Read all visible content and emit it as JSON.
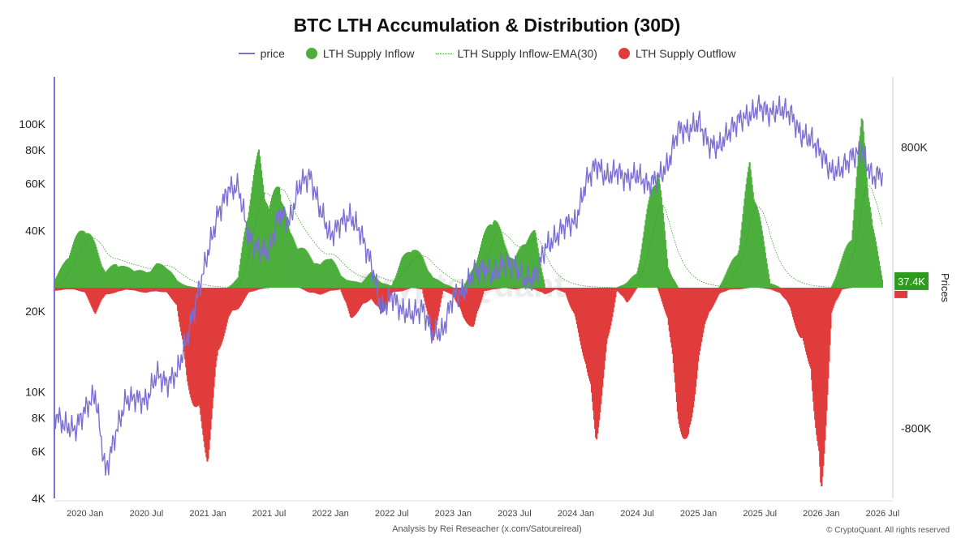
{
  "colors": {
    "price": "#7b6fd6",
    "inflow": "#4caf3c",
    "inflow_ema": "#3a9a2e",
    "outflow": "#e03c3c",
    "axis": "#7b6fd6",
    "badge": "#2e9a1f"
  },
  "chart_data": {
    "type": "bar",
    "title": "BTC LTH Accumulation & Distribution (30D)",
    "legend": [
      {
        "name": "price",
        "kind": "line",
        "color_key": "price"
      },
      {
        "name": "LTH Supply Inflow",
        "kind": "dot",
        "color_key": "inflow"
      },
      {
        "name": "LTH Supply Inflow-EMA(30)",
        "kind": "dash",
        "color_key": "inflow_ema"
      },
      {
        "name": "LTH Supply Outflow",
        "kind": "dot",
        "color_key": "outflow"
      }
    ],
    "legend_position": "top-center",
    "x_ticks": [
      "2020 Jan",
      "2020 Jul",
      "2021 Jan",
      "2021 Jul",
      "2022 Jan",
      "2022 Jul",
      "2023 Jan",
      "2023 Jul",
      "2024 Jan",
      "2024 Jul",
      "2025 Jan",
      "2025 Jul",
      "2026 Jan",
      "2026 Jul"
    ],
    "x_range": [
      "2019-10",
      "2026-08"
    ],
    "left_axis": {
      "scale": "log",
      "range": [
        4000,
        150000
      ],
      "ticks": [
        {
          "v": 4000,
          "label": "4K"
        },
        {
          "v": 6000,
          "label": "6K"
        },
        {
          "v": 8000,
          "label": "8K"
        },
        {
          "v": 10000,
          "label": "10K"
        },
        {
          "v": 20000,
          "label": "20K"
        },
        {
          "v": 40000,
          "label": "40K"
        },
        {
          "v": 60000,
          "label": "60K"
        },
        {
          "v": 80000,
          "label": "80K"
        },
        {
          "v": 100000,
          "label": "100K"
        }
      ]
    },
    "right_axis": {
      "label": "Prices",
      "range": [
        -1200000,
        1200000
      ],
      "ticks": [
        {
          "v": 800000,
          "label": "800K"
        },
        {
          "v": -800000,
          "label": "-800K"
        }
      ],
      "current_label": "37.4K"
    },
    "price_series": {
      "name": "price",
      "points": [
        [
          "2019-10",
          8300
        ],
        [
          "2019-11",
          7500
        ],
        [
          "2019-12",
          7200
        ],
        [
          "2020-01",
          8600
        ],
        [
          "2020-02",
          9800
        ],
        [
          "2020-03",
          5000
        ],
        [
          "2020-04",
          7000
        ],
        [
          "2020-05",
          9300
        ],
        [
          "2020-06",
          9500
        ],
        [
          "2020-07",
          9200
        ],
        [
          "2020-08",
          11700
        ],
        [
          "2020-09",
          10700
        ],
        [
          "2020-10",
          11800
        ],
        [
          "2020-11",
          16000
        ],
        [
          "2020-12",
          23000
        ],
        [
          "2021-01",
          33000
        ],
        [
          "2021-02",
          46000
        ],
        [
          "2021-03",
          57000
        ],
        [
          "2021-04",
          58000
        ],
        [
          "2021-05",
          38000
        ],
        [
          "2021-06",
          34000
        ],
        [
          "2021-07",
          33000
        ],
        [
          "2021-08",
          47000
        ],
        [
          "2021-09",
          43000
        ],
        [
          "2021-10",
          60000
        ],
        [
          "2021-11",
          64000
        ],
        [
          "2021-12",
          48000
        ],
        [
          "2022-01",
          38000
        ],
        [
          "2022-02",
          43000
        ],
        [
          "2022-03",
          45000
        ],
        [
          "2022-04",
          39000
        ],
        [
          "2022-05",
          30000
        ],
        [
          "2022-06",
          20000
        ],
        [
          "2022-07",
          23000
        ],
        [
          "2022-08",
          20000
        ],
        [
          "2022-09",
          19500
        ],
        [
          "2022-10",
          20500
        ],
        [
          "2022-11",
          16500
        ],
        [
          "2022-12",
          16800
        ],
        [
          "2023-01",
          23000
        ],
        [
          "2023-02",
          23500
        ],
        [
          "2023-03",
          28000
        ],
        [
          "2023-04",
          29000
        ],
        [
          "2023-05",
          27000
        ],
        [
          "2023-06",
          30500
        ],
        [
          "2023-07",
          29500
        ],
        [
          "2023-08",
          26000
        ],
        [
          "2023-09",
          27000
        ],
        [
          "2023-10",
          34500
        ],
        [
          "2023-11",
          37500
        ],
        [
          "2023-12",
          42500
        ],
        [
          "2024-01",
          43000
        ],
        [
          "2024-02",
          61000
        ],
        [
          "2024-03",
          71000
        ],
        [
          "2024-04",
          63000
        ],
        [
          "2024-05",
          67000
        ],
        [
          "2024-06",
          62000
        ],
        [
          "2024-07",
          65000
        ],
        [
          "2024-08",
          59000
        ],
        [
          "2024-09",
          63000
        ],
        [
          "2024-10",
          70000
        ],
        [
          "2024-11",
          96000
        ],
        [
          "2024-12",
          94000
        ],
        [
          "2025-01",
          102000
        ],
        [
          "2025-02",
          84000
        ],
        [
          "2025-03",
          82000
        ],
        [
          "2025-04",
          94000
        ],
        [
          "2025-05",
          104000
        ],
        [
          "2025-06",
          107000
        ],
        [
          "2025-07",
          117000
        ],
        [
          "2025-08",
          109000
        ],
        [
          "2025-09",
          114000
        ],
        [
          "2025-10",
          110000
        ],
        [
          "2025-11",
          91000
        ],
        [
          "2025-12",
          88000
        ],
        [
          "2026-01",
          78000
        ],
        [
          "2026-02",
          66000
        ],
        [
          "2026-03",
          68000
        ],
        [
          "2026-04",
          76000
        ],
        [
          "2026-05",
          79000
        ],
        [
          "2026-06",
          63000
        ],
        [
          "2026-07",
          66000
        ]
      ]
    },
    "flow_series": {
      "inflow_name": "LTH Supply Inflow",
      "outflow_name": "LTH Supply Outflow",
      "ema_name": "LTH Supply Inflow-EMA(30)",
      "points": [
        [
          "2019-10",
          40000,
          -20000
        ],
        [
          "2019-11",
          150000,
          -10000
        ],
        [
          "2019-12",
          280000,
          -10000
        ],
        [
          "2020-01",
          380000,
          -30000
        ],
        [
          "2020-02",
          250000,
          -150000
        ],
        [
          "2020-03",
          90000,
          -40000
        ],
        [
          "2020-04",
          150000,
          -30000
        ],
        [
          "2020-05",
          120000,
          -10000
        ],
        [
          "2020-06",
          110000,
          -20000
        ],
        [
          "2020-07",
          90000,
          -30000
        ],
        [
          "2020-08",
          140000,
          -20000
        ],
        [
          "2020-09",
          130000,
          -30000
        ],
        [
          "2020-10",
          40000,
          -100000
        ],
        [
          "2020-11",
          10000,
          -550000
        ],
        [
          "2020-12",
          0,
          -760000
        ],
        [
          "2021-01",
          0,
          -1000000
        ],
        [
          "2021-02",
          0,
          -400000
        ],
        [
          "2021-03",
          0,
          -180000
        ],
        [
          "2021-04",
          60000,
          -120000
        ],
        [
          "2021-05",
          500000,
          -30000
        ],
        [
          "2021-06",
          800000,
          -10000
        ],
        [
          "2021-07",
          460000,
          0
        ],
        [
          "2021-08",
          650000,
          0
        ],
        [
          "2021-09",
          320000,
          0
        ],
        [
          "2021-10",
          250000,
          0
        ],
        [
          "2021-11",
          190000,
          -30000
        ],
        [
          "2021-12",
          130000,
          -40000
        ],
        [
          "2022-01",
          200000,
          -20000
        ],
        [
          "2022-02",
          70000,
          -10000
        ],
        [
          "2022-03",
          40000,
          -180000
        ],
        [
          "2022-04",
          30000,
          -120000
        ],
        [
          "2022-05",
          90000,
          -60000
        ],
        [
          "2022-06",
          30000,
          -160000
        ],
        [
          "2022-07",
          10000,
          -30000
        ],
        [
          "2022-08",
          170000,
          -20000
        ],
        [
          "2022-09",
          250000,
          0
        ],
        [
          "2022-10",
          180000,
          -10000
        ],
        [
          "2022-11",
          60000,
          -320000
        ],
        [
          "2022-12",
          30000,
          -20000
        ],
        [
          "2023-01",
          0,
          -40000
        ],
        [
          "2023-02",
          0,
          -180000
        ],
        [
          "2023-03",
          120000,
          -240000
        ],
        [
          "2023-04",
          300000,
          -20000
        ],
        [
          "2023-05",
          450000,
          -10000
        ],
        [
          "2023-06",
          260000,
          0
        ],
        [
          "2023-07",
          160000,
          -10000
        ],
        [
          "2023-08",
          290000,
          0
        ],
        [
          "2023-09",
          330000,
          -10000
        ],
        [
          "2023-10",
          0,
          -40000
        ],
        [
          "2023-11",
          0,
          -10000
        ],
        [
          "2023-12",
          0,
          -30000
        ],
        [
          "2024-01",
          0,
          -200000
        ],
        [
          "2024-02",
          0,
          -450000
        ],
        [
          "2024-03",
          0,
          -900000
        ],
        [
          "2024-04",
          0,
          -380000
        ],
        [
          "2024-05",
          0,
          -10000
        ],
        [
          "2024-06",
          30000,
          -90000
        ],
        [
          "2024-07",
          90000,
          0
        ],
        [
          "2024-08",
          450000,
          0
        ],
        [
          "2024-09",
          760000,
          0
        ],
        [
          "2024-10",
          120000,
          -180000
        ],
        [
          "2024-11",
          0,
          -750000
        ],
        [
          "2024-12",
          0,
          -1000000
        ],
        [
          "2025-01",
          0,
          -400000
        ],
        [
          "2025-02",
          0,
          -150000
        ],
        [
          "2025-03",
          0,
          -40000
        ],
        [
          "2025-04",
          120000,
          -10000
        ],
        [
          "2025-05",
          250000,
          -10000
        ],
        [
          "2025-06",
          750000,
          0
        ],
        [
          "2025-07",
          400000,
          0
        ],
        [
          "2025-08",
          30000,
          -10000
        ],
        [
          "2025-09",
          0,
          -30000
        ],
        [
          "2025-10",
          0,
          -120000
        ],
        [
          "2025-11",
          0,
          -320000
        ],
        [
          "2025-12",
          0,
          -460000
        ],
        [
          "2026-01",
          0,
          -1300000
        ],
        [
          "2026-02",
          0,
          -150000
        ],
        [
          "2026-03",
          160000,
          -10000
        ],
        [
          "2026-04",
          330000,
          0
        ],
        [
          "2026-05",
          1000000,
          0
        ],
        [
          "2026-06",
          370000,
          0
        ],
        [
          "2026-07",
          37400,
          0
        ]
      ]
    }
  },
  "footer": {
    "attribution": "Analysis by Rei Reseacher (x.com/Satoureireal)",
    "copyright": "© CryptoQuant. All rights reserved",
    "watermark": "CryptoQuant"
  }
}
